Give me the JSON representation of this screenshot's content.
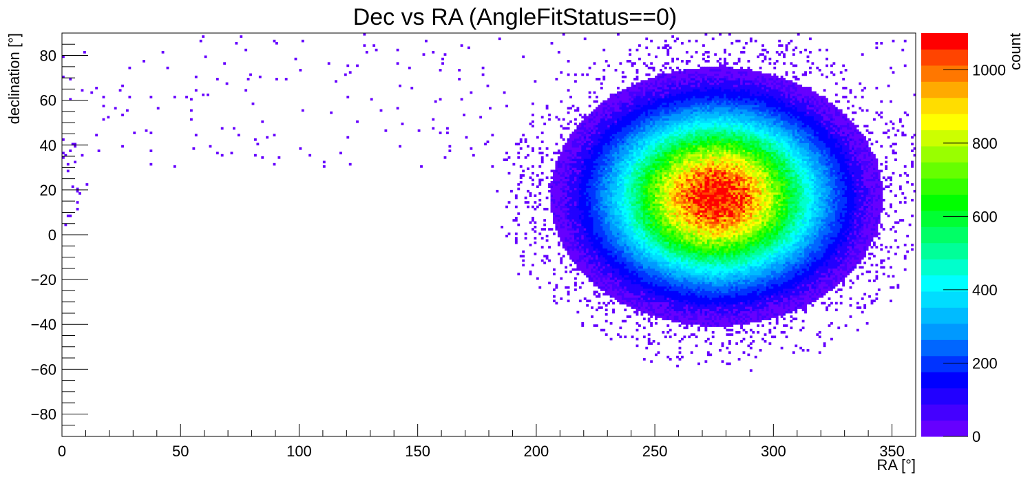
{
  "chart_data": {
    "type": "heatmap",
    "title": "Dec vs RA (AngleFitStatus==0)",
    "xlabel": "RA [°]",
    "ylabel": "declination [°]",
    "zlabel": "count",
    "xlim": [
      0,
      360
    ],
    "ylim": [
      -90,
      90
    ],
    "zlim": [
      0,
      1100
    ],
    "x_ticks": [
      0,
      50,
      100,
      150,
      200,
      250,
      300,
      350
    ],
    "y_ticks": [
      -80,
      -60,
      -40,
      -20,
      0,
      20,
      40,
      60,
      80
    ],
    "z_ticks": [
      0,
      200,
      400,
      600,
      800,
      1000
    ],
    "bins": {
      "x": 360,
      "y": 180
    },
    "peak": {
      "ra": 276,
      "dec": 17,
      "count": 1100
    },
    "colormap": [
      "#6600ff",
      "#4400ff",
      "#2200ff",
      "#0000ff",
      "#0033ff",
      "#0066ff",
      "#0099ff",
      "#00bbff",
      "#00ddff",
      "#00ffff",
      "#00ffcc",
      "#00ff99",
      "#00ff66",
      "#00ff33",
      "#00ff00",
      "#33ff00",
      "#66ff00",
      "#99ff00",
      "#ccff00",
      "#ffff00",
      "#ffdd00",
      "#ffaa00",
      "#ff7700",
      "#ff4400",
      "#ff0000"
    ]
  }
}
